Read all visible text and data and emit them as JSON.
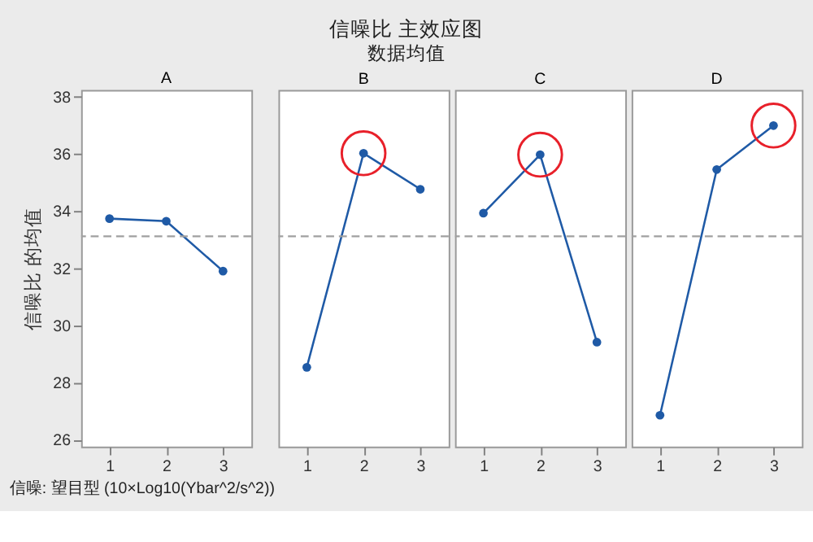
{
  "chart_data": [
    {
      "type": "other",
      "title": "信噪比 主效应图",
      "subtitle": "数据均值",
      "annotations": [
        "信噪: 望目型 (10×Log10(Ybar^2/s^2))"
      ]
    },
    {
      "type": "line",
      "title": "A",
      "ylabel": "信噪比 的均值",
      "x": [
        1,
        2,
        3
      ],
      "xlim": [
        0.5,
        3.5
      ],
      "xticks": [
        1,
        2,
        3
      ],
      "ylim": [
        25.75,
        38.25
      ],
      "yticks": [
        26,
        28,
        30,
        32,
        34,
        36,
        38
      ],
      "marker": "circle",
      "series": [
        {
          "color": "#1f5aa6",
          "values": [
            33.74,
            33.65,
            31.9
          ]
        }
      ],
      "ref_lines": [
        {
          "axis": "y",
          "value": 33.12,
          "color": "#a0a0a0",
          "line_style": "dashed"
        }
      ]
    },
    {
      "type": "line",
      "title": "B",
      "x": [
        1,
        2,
        3
      ],
      "xlim": [
        0.5,
        3.5
      ],
      "xticks": [
        1,
        2,
        3
      ],
      "ylim": [
        25.75,
        38.25
      ],
      "tick_labels": "x",
      "marker": "circle",
      "series": [
        {
          "color": "#1f5aa6",
          "values": [
            28.53,
            36.03,
            34.77
          ]
        },
        {
          "type": "scatter",
          "color": "#e8202a",
          "values": [
            null,
            36.03,
            null
          ]
        }
      ],
      "ref_lines": [
        {
          "axis": "y",
          "value": 33.12,
          "color": "#a0a0a0",
          "line_style": "dashed"
        }
      ]
    },
    {
      "type": "line",
      "title": "C",
      "x": [
        1,
        2,
        3
      ],
      "xlim": [
        0.5,
        3.5
      ],
      "xticks": [
        1,
        2,
        3
      ],
      "ylim": [
        25.75,
        38.25
      ],
      "tick_labels": "x",
      "marker": "circle",
      "series": [
        {
          "color": "#1f5aa6",
          "values": [
            33.93,
            35.98,
            29.41
          ]
        },
        {
          "type": "scatter",
          "color": "#e8202a",
          "values": [
            null,
            35.98,
            null
          ]
        }
      ],
      "ref_lines": [
        {
          "axis": "y",
          "value": 33.12,
          "color": "#a0a0a0",
          "line_style": "dashed"
        }
      ]
    },
    {
      "type": "line",
      "title": "D",
      "x": [
        1,
        2,
        3
      ],
      "xlim": [
        0.5,
        3.5
      ],
      "xticks": [
        1,
        2,
        3
      ],
      "ylim": [
        25.75,
        38.25
      ],
      "tick_labels": "x",
      "marker": "circle",
      "series": [
        {
          "color": "#1f5aa6",
          "values": [
            26.85,
            35.46,
            37.0
          ]
        },
        {
          "type": "scatter",
          "color": "#e8202a",
          "values": [
            null,
            null,
            37.0
          ]
        }
      ],
      "ref_lines": [
        {
          "axis": "y",
          "value": 33.12,
          "color": "#a0a0a0",
          "line_style": "dashed"
        }
      ]
    }
  ]
}
